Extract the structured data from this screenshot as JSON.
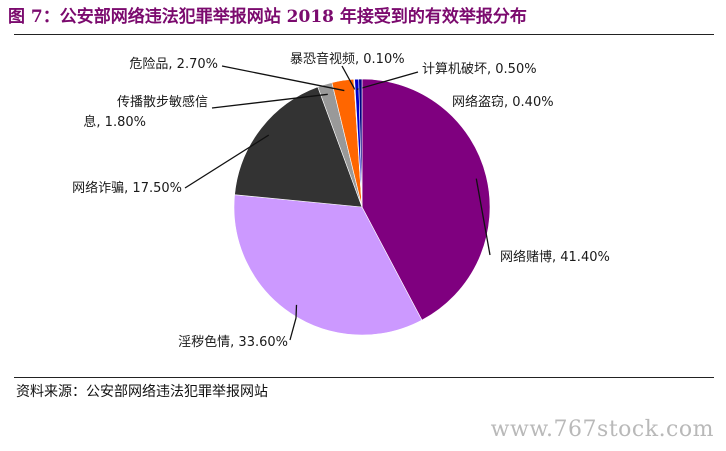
{
  "figure": {
    "title": "图 7：公安部网络违法犯罪举报网站 2018 年接受到的有效举报分布",
    "source": "资料来源：公安部网络违法犯罪举报网站",
    "watermark": "www.767stock.com"
  },
  "chart_data": {
    "type": "pie",
    "title": "",
    "legend": "none",
    "slices": [
      {
        "label": "网络赌博",
        "value": 41.4,
        "display": "41.40%",
        "color": "#7f007f"
      },
      {
        "label": "淫秽色情",
        "value": 33.6,
        "display": "33.60%",
        "color": "#cc99ff"
      },
      {
        "label": "网络诈骗",
        "value": 17.5,
        "display": "17.50%",
        "color": "#333333"
      },
      {
        "label": "传播散步敏感信息",
        "label_lines": [
          "传播散步敏感信",
          "息"
        ],
        "value": 1.8,
        "display": "1.80%",
        "color": "#999999"
      },
      {
        "label": "危险品",
        "value": 2.7,
        "display": "2.70%",
        "color": "#ff6600"
      },
      {
        "label": "暴恐音视频",
        "value": 0.1,
        "display": "0.10%",
        "color": "#cccccc"
      },
      {
        "label": "计算机破坏",
        "value": 0.5,
        "display": "0.50%",
        "color": "#0000cc"
      },
      {
        "label": "网络盗窃",
        "value": 0.4,
        "display": "0.40%",
        "color": "#000080"
      }
    ]
  }
}
